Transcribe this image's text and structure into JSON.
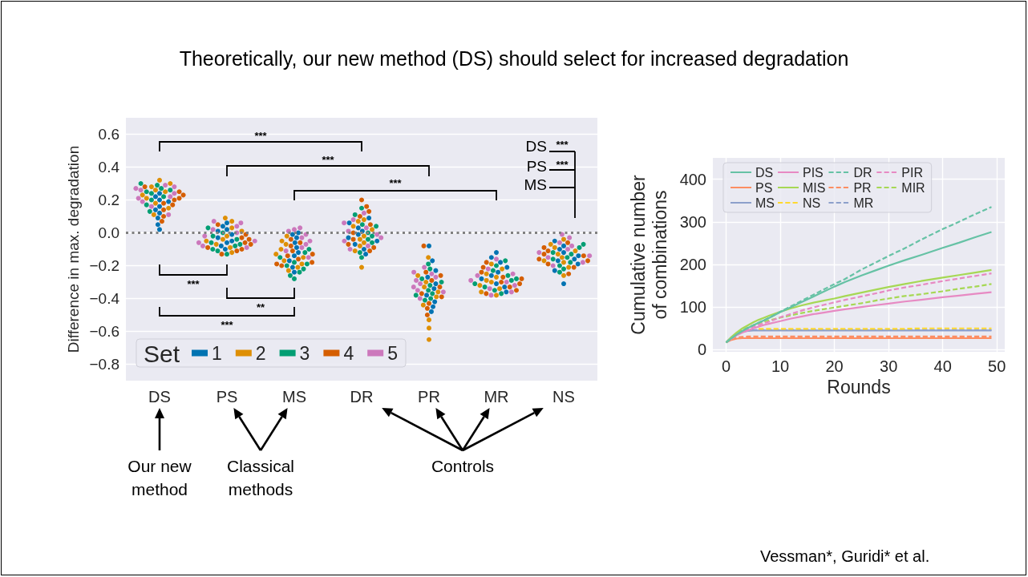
{
  "chart_data": [
    {
      "type": "scatter",
      "title": "Theoretically, our new method (DS) should select for increased degradation",
      "ylabel": "Difference in max. degradation",
      "legend_title": "Set",
      "categories": [
        "DS",
        "PS",
        "MS",
        "DR",
        "PR",
        "MR",
        "NS"
      ],
      "series": [
        {
          "name": "1",
          "color": "#0173b2",
          "x": [
            "DS",
            "DS",
            "DS",
            "DS",
            "DS",
            "DS",
            "DS",
            "DS",
            "DS",
            "DS",
            "PS",
            "PS",
            "PS",
            "PS",
            "PS",
            "PS",
            "PS",
            "PS",
            "PS",
            "PS",
            "MS",
            "MS",
            "MS",
            "MS",
            "MS",
            "MS",
            "MS",
            "MS",
            "MS",
            "MS",
            "DR",
            "DR",
            "DR",
            "DR",
            "DR",
            "DR",
            "DR",
            "DR",
            "DR",
            "DR",
            "PR",
            "PR",
            "PR",
            "PR",
            "PR",
            "PR",
            "PR",
            "PR",
            "PR",
            "PR",
            "MR",
            "MR",
            "MR",
            "MR",
            "MR",
            "MR",
            "MR",
            "MR",
            "MR",
            "MR",
            "NS",
            "NS",
            "NS",
            "NS",
            "NS",
            "NS",
            "NS",
            "NS",
            "NS",
            "NS"
          ],
          "values": [
            0.24,
            0.22,
            0.2,
            0.19,
            0.16,
            0.14,
            0.12,
            0.09,
            0.05,
            0.02,
            0.06,
            0.04,
            0.02,
            0.01,
            -0.01,
            -0.03,
            -0.05,
            -0.06,
            -0.08,
            -0.1,
            0,
            -0.01,
            -0.03,
            -0.06,
            -0.09,
            -0.12,
            -0.14,
            -0.17,
            -0.21,
            -0.24,
            0.09,
            0.06,
            0.03,
            0.01,
            -0.01,
            -0.03,
            -0.05,
            -0.07,
            -0.1,
            -0.13,
            -0.08,
            -0.17,
            -0.23,
            -0.27,
            -0.31,
            -0.34,
            -0.38,
            -0.42,
            -0.45,
            -0.48,
            -0.12,
            -0.15,
            -0.18,
            -0.21,
            -0.24,
            -0.26,
            -0.28,
            -0.31,
            -0.33,
            -0.36,
            -0.05,
            -0.08,
            -0.1,
            -0.12,
            -0.14,
            -0.16,
            -0.17,
            -0.19,
            -0.23,
            -0.31
          ]
        },
        {
          "name": "2",
          "color": "#de8f05",
          "x": [
            "DS",
            "DS",
            "DS",
            "DS",
            "DS",
            "DS",
            "DS",
            "DS",
            "DS",
            "DS",
            "PS",
            "PS",
            "PS",
            "PS",
            "PS",
            "PS",
            "PS",
            "PS",
            "PS",
            "PS",
            "MS",
            "MS",
            "MS",
            "MS",
            "MS",
            "MS",
            "MS",
            "MS",
            "MS",
            "MS",
            "DR",
            "DR",
            "DR",
            "DR",
            "DR",
            "DR",
            "DR",
            "DR",
            "DR",
            "DR",
            "PR",
            "PR",
            "PR",
            "PR",
            "PR",
            "PR",
            "PR",
            "PR",
            "PR",
            "PR",
            "MR",
            "MR",
            "MR",
            "MR",
            "MR",
            "MR",
            "MR",
            "MR",
            "MR",
            "MR",
            "NS",
            "NS",
            "NS",
            "NS",
            "NS",
            "NS",
            "NS",
            "NS",
            "NS",
            "NS"
          ],
          "values": [
            0.32,
            0.3,
            0.28,
            0.26,
            0.25,
            0.23,
            0.21,
            0.18,
            0.11,
            0.15,
            0.09,
            0.07,
            0.03,
            0.01,
            -0.02,
            -0.04,
            -0.05,
            -0.07,
            -0.09,
            -0.12,
            -0.02,
            -0.05,
            -0.07,
            -0.1,
            -0.13,
            -0.15,
            -0.17,
            -0.19,
            -0.21,
            -0.23,
            0.08,
            0.07,
            0.04,
            0.02,
            -0.02,
            -0.04,
            -0.06,
            -0.08,
            -0.11,
            -0.21,
            -0.15,
            -0.26,
            -0.3,
            -0.33,
            -0.36,
            -0.39,
            -0.44,
            -0.53,
            -0.58,
            -0.65,
            -0.19,
            -0.22,
            -0.25,
            -0.27,
            -0.29,
            -0.3,
            -0.32,
            -0.34,
            -0.36,
            -0.38,
            -0.04,
            -0.07,
            -0.09,
            -0.11,
            -0.13,
            -0.15,
            -0.17,
            -0.18,
            -0.21,
            -0.26
          ]
        },
        {
          "name": "3",
          "color": "#029e73",
          "x": [
            "DS",
            "DS",
            "DS",
            "DS",
            "DS",
            "DS",
            "DS",
            "DS",
            "DS",
            "DS",
            "PS",
            "PS",
            "PS",
            "PS",
            "PS",
            "PS",
            "PS",
            "PS",
            "PS",
            "PS",
            "MS",
            "MS",
            "MS",
            "MS",
            "MS",
            "MS",
            "MS",
            "MS",
            "MS",
            "MS",
            "DR",
            "DR",
            "DR",
            "DR",
            "DR",
            "DR",
            "DR",
            "DR",
            "DR",
            "DR",
            "PR",
            "PR",
            "PR",
            "PR",
            "PR",
            "PR",
            "PR",
            "PR",
            "PR",
            "PR",
            "MR",
            "MR",
            "MR",
            "MR",
            "MR",
            "MR",
            "MR",
            "MR",
            "MR",
            "MR",
            "NS",
            "NS",
            "NS",
            "NS",
            "NS",
            "NS",
            "NS",
            "NS",
            "NS",
            "NS"
          ],
          "values": [
            0.3,
            0.29,
            0.27,
            0.26,
            0.24,
            0.22,
            0.2,
            0.17,
            0.13,
            0.25,
            0.03,
            0,
            -0.02,
            -0.04,
            -0.06,
            -0.07,
            -0.08,
            -0.1,
            -0.11,
            -0.13,
            -0.1,
            -0.12,
            -0.15,
            -0.18,
            -0.19,
            -0.2,
            -0.22,
            -0.24,
            -0.26,
            -0.28,
            0.15,
            0.11,
            0.05,
            0.04,
            0,
            -0.02,
            -0.04,
            -0.06,
            -0.12,
            -0.15,
            -0.19,
            -0.22,
            -0.28,
            -0.3,
            -0.32,
            -0.35,
            -0.37,
            -0.38,
            -0.4,
            -0.41,
            -0.17,
            -0.2,
            -0.23,
            -0.26,
            -0.28,
            -0.31,
            -0.33,
            -0.35,
            -0.37,
            -0.29,
            -0.07,
            -0.09,
            -0.12,
            -0.13,
            -0.15,
            -0.16,
            -0.18,
            -0.2,
            -0.22,
            -0.24
          ]
        },
        {
          "name": "4",
          "color": "#d55e00",
          "x": [
            "DS",
            "DS",
            "DS",
            "DS",
            "DS",
            "DS",
            "DS",
            "DS",
            "DS",
            "DS",
            "PS",
            "PS",
            "PS",
            "PS",
            "PS",
            "PS",
            "PS",
            "PS",
            "PS",
            "PS",
            "MS",
            "MS",
            "MS",
            "MS",
            "MS",
            "MS",
            "MS",
            "MS",
            "MS",
            "MS",
            "DR",
            "DR",
            "DR",
            "DR",
            "DR",
            "DR",
            "DR",
            "DR",
            "DR",
            "DR",
            "PR",
            "PR",
            "PR",
            "PR",
            "PR",
            "PR",
            "PR",
            "PR",
            "PR",
            "PR",
            "MR",
            "MR",
            "MR",
            "MR",
            "MR",
            "MR",
            "MR",
            "MR",
            "MR",
            "MR",
            "NS",
            "NS",
            "NS",
            "NS",
            "NS",
            "NS",
            "NS",
            "NS",
            "NS",
            "NS"
          ],
          "values": [
            0.28,
            0.25,
            0.23,
            0.21,
            0.2,
            0.18,
            0.17,
            0.14,
            0.1,
            0.07,
            0.05,
            -0.01,
            -0.03,
            -0.04,
            -0.06,
            -0.07,
            -0.09,
            -0.1,
            -0.11,
            -0.13,
            -0.04,
            -0.06,
            -0.08,
            -0.11,
            -0.13,
            -0.14,
            -0.16,
            -0.18,
            -0.19,
            -0.2,
            0.2,
            0.16,
            0.13,
            0.1,
            0.05,
            0,
            -0.04,
            -0.07,
            -0.09,
            -0.11,
            -0.08,
            -0.24,
            -0.26,
            -0.29,
            -0.33,
            -0.37,
            -0.39,
            -0.43,
            -0.46,
            -0.5,
            -0.18,
            -0.21,
            -0.24,
            -0.27,
            -0.28,
            -0.3,
            -0.31,
            -0.33,
            -0.35,
            -0.37,
            -0.06,
            -0.09,
            -0.11,
            -0.13,
            -0.14,
            -0.16,
            -0.17,
            -0.19,
            -0.21,
            -0.25
          ]
        },
        {
          "name": "5",
          "color": "#cc78bc",
          "x": [
            "DS",
            "DS",
            "DS",
            "DS",
            "DS",
            "DS",
            "DS",
            "DS",
            "DS",
            "DS",
            "PS",
            "PS",
            "PS",
            "PS",
            "PS",
            "PS",
            "PS",
            "PS",
            "PS",
            "PS",
            "MS",
            "MS",
            "MS",
            "MS",
            "MS",
            "MS",
            "MS",
            "MS",
            "MS",
            "MS",
            "DR",
            "DR",
            "DR",
            "DR",
            "DR",
            "DR",
            "DR",
            "DR",
            "DR",
            "DR",
            "PR",
            "PR",
            "PR",
            "PR",
            "PR",
            "PR",
            "PR",
            "PR",
            "PR",
            "PR",
            "MR",
            "MR",
            "MR",
            "MR",
            "MR",
            "MR",
            "MR",
            "MR",
            "MR",
            "MR",
            "NS",
            "NS",
            "NS",
            "NS",
            "NS",
            "NS",
            "NS",
            "NS",
            "NS",
            "NS"
          ],
          "values": [
            0.29,
            0.28,
            0.27,
            0.26,
            0.24,
            0.22,
            0.21,
            0.19,
            0.16,
            0.11,
            0.07,
            0.06,
            0.04,
            0.02,
            0,
            -0.02,
            -0.05,
            -0.06,
            -0.08,
            -0.09,
            0.03,
            0.02,
            0.01,
            -0.01,
            -0.03,
            -0.05,
            -0.07,
            -0.09,
            -0.11,
            -0.15,
            0.12,
            0.08,
            0.06,
            0.03,
            0.01,
            -0.01,
            -0.03,
            -0.05,
            -0.08,
            -0.1,
            -0.21,
            -0.25,
            -0.27,
            -0.29,
            -0.31,
            -0.33,
            -0.35,
            -0.36,
            -0.4,
            -0.24,
            -0.16,
            -0.22,
            -0.25,
            -0.26,
            -0.29,
            -0.3,
            -0.32,
            -0.34,
            -0.36,
            -0.38,
            -0.01,
            -0.03,
            -0.06,
            -0.08,
            -0.1,
            -0.12,
            -0.14,
            -0.15,
            -0.18,
            -0.2
          ]
        }
      ],
      "ylim": [
        -0.9,
        0.7
      ],
      "yticks": [
        {
          "value": -0.8,
          "label": "−0.8"
        },
        {
          "value": -0.6,
          "label": "−0.6"
        },
        {
          "value": -0.4,
          "label": "−0.4"
        },
        {
          "value": -0.2,
          "label": "−0.2"
        },
        {
          "value": 0,
          "label": "0.0"
        },
        0.2,
        0.4,
        0.6
      ],
      "grid": "y",
      "legend": "bottom left",
      "marker": "circle",
      "ref_lines": [
        {
          "axis": "y",
          "value": 0,
          "color": "#808080",
          "line_style": "dotted"
        }
      ],
      "annotations": [
        "***",
        "***",
        "***",
        "***",
        "**",
        "***",
        "DS",
        "***",
        "PS",
        "***",
        "MS",
        "Our new method",
        "Classical methods",
        "Controls"
      ]
    },
    {
      "type": "line",
      "xlabel": "Rounds",
      "ylabel": "Cumulative number of combinations",
      "x": [
        0,
        1,
        2,
        3,
        4,
        5,
        6,
        7,
        8,
        10,
        12,
        14,
        16,
        18,
        20,
        22,
        25,
        28,
        30,
        33,
        36,
        40,
        43,
        46,
        49
      ],
      "series": [
        {
          "name": "DS",
          "color": "#66c2a5",
          "line_style": "solid",
          "values": [
            17,
            27,
            36,
            44,
            51,
            57,
            63,
            69,
            75,
            88,
            100,
            112,
            124,
            136,
            148,
            159,
            174,
            188,
            197,
            210,
            222,
            239,
            251,
            264,
            276
          ]
        },
        {
          "name": "PS",
          "color": "#fc8d62",
          "line_style": "solid",
          "values": [
            17,
            23,
            26,
            27,
            27,
            27,
            27,
            27,
            27,
            27,
            27,
            27,
            27,
            27,
            27,
            27,
            27,
            27,
            27,
            27,
            27,
            27,
            27,
            27,
            27
          ]
        },
        {
          "name": "MS",
          "color": "#8da0cb",
          "line_style": "solid",
          "values": [
            17,
            29,
            38,
            42,
            44,
            45,
            45,
            45,
            45,
            45,
            45,
            45,
            45,
            45,
            45,
            45,
            45,
            45,
            45,
            45,
            45,
            45,
            45,
            45,
            45
          ]
        },
        {
          "name": "PIS",
          "color": "#e78ac3",
          "line_style": "solid",
          "values": [
            17,
            26,
            34,
            40,
            45,
            50,
            54,
            58,
            61,
            67,
            73,
            78,
            83,
            87,
            91,
            95,
            100,
            105,
            108,
            113,
            117,
            123,
            127,
            131,
            135
          ]
        },
        {
          "name": "MIS",
          "color": "#a6d854",
          "line_style": "solid",
          "values": [
            17,
            30,
            41,
            50,
            57,
            64,
            70,
            75,
            80,
            89,
            97,
            104,
            110,
            115,
            120,
            126,
            134,
            142,
            147,
            154,
            161,
            169,
            175,
            181,
            187
          ]
        },
        {
          "name": "NS",
          "color": "#ffd92f",
          "line_style": "dashed",
          "values": [
            null,
            null,
            null,
            null,
            null,
            null,
            49,
            49,
            49,
            49,
            49,
            49,
            49,
            49,
            49,
            49,
            49,
            49,
            49,
            49,
            50,
            50,
            50,
            50,
            50
          ]
        },
        {
          "name": "DR",
          "color": "#66c2a5",
          "line_style": "dashed",
          "values": [
            17,
            27,
            36,
            44,
            51,
            57,
            63,
            69,
            75,
            89,
            102,
            115,
            128,
            141,
            154,
            166,
            188,
            207,
            220,
            238,
            258,
            283,
            300,
            318,
            335
          ]
        },
        {
          "name": "PR",
          "color": "#fc8d62",
          "line_style": "dashed",
          "values": [
            null,
            25,
            29,
            30,
            31,
            31,
            31,
            31,
            31,
            31,
            31,
            31,
            31,
            31,
            31,
            31,
            31,
            31,
            31,
            31,
            31,
            31,
            31,
            31,
            31
          ]
        },
        {
          "name": "MR",
          "color": "#8da0cb",
          "line_style": "dashed",
          "values": [
            17,
            29,
            38,
            43,
            45,
            46,
            46,
            46,
            46,
            46,
            46,
            46,
            46,
            46,
            46,
            46,
            46,
            46,
            46,
            46,
            46,
            46,
            46,
            46,
            46
          ]
        },
        {
          "name": "PIR",
          "color": "#e78ac3",
          "line_style": "dashed",
          "values": [
            null,
            27,
            36,
            43,
            49,
            54,
            58,
            62,
            66,
            76,
            84,
            92,
            99,
            105,
            111,
            117,
            125,
            133,
            139,
            146,
            152,
            161,
            167,
            173,
            179
          ]
        },
        {
          "name": "MIR",
          "color": "#a6d854",
          "line_style": "dashed",
          "values": [
            17,
            28,
            38,
            46,
            52,
            57,
            62,
            66,
            69,
            75,
            81,
            86,
            91,
            95,
            99,
            103,
            109,
            116,
            120,
            126,
            130,
            137,
            143,
            148,
            154
          ]
        }
      ],
      "xlim": [
        -2.45,
        51.45
      ],
      "xticks": [
        0,
        10,
        20,
        30,
        40,
        50
      ],
      "ylim": [
        -5,
        450
      ],
      "yticks": [
        0,
        100,
        200,
        300,
        400
      ],
      "grid": true,
      "legend": "top left",
      "marker": "none",
      "annotations": [
        "Vessman*, Guridi* et al."
      ]
    }
  ]
}
